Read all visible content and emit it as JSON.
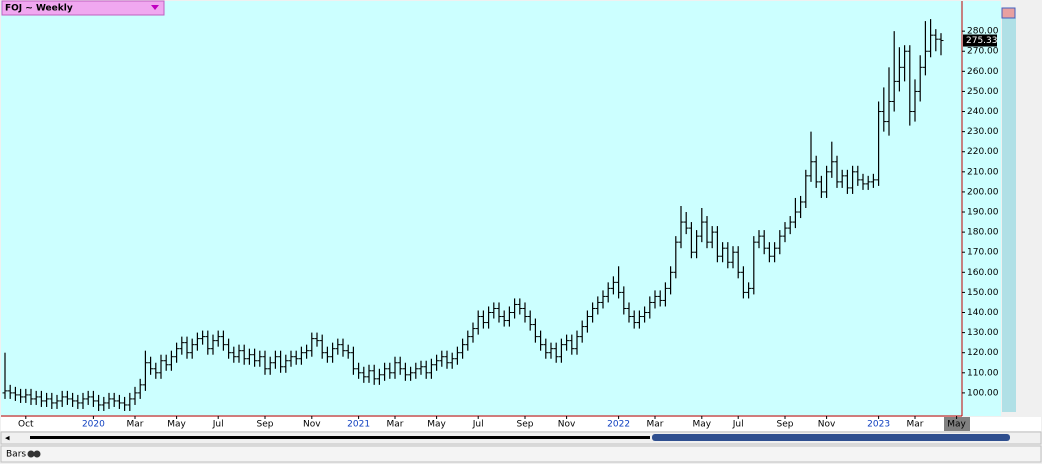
{
  "chart_data": {
    "type": "ohlc",
    "title": "FOJ ~ Weekly",
    "footer_label": "Bars",
    "color": "#000000",
    "categories": [
      null,
      null,
      null,
      null,
      "Oct",
      null,
      null,
      null,
      null,
      null,
      null,
      null,
      null,
      null,
      null,
      null,
      null,
      "2020",
      null,
      null,
      null,
      null,
      null,
      null,
      null,
      "Mar",
      null,
      null,
      null,
      null,
      null,
      null,
      null,
      "May",
      null,
      null,
      null,
      null,
      null,
      null,
      null,
      "Jul",
      null,
      null,
      null,
      null,
      null,
      null,
      null,
      null,
      "Sep",
      null,
      null,
      null,
      null,
      null,
      null,
      null,
      null,
      "Nov",
      null,
      null,
      null,
      null,
      null,
      null,
      null,
      null,
      "2021",
      null,
      null,
      null,
      null,
      null,
      null,
      "Mar",
      null,
      null,
      null,
      null,
      null,
      null,
      null,
      "May",
      null,
      null,
      null,
      null,
      null,
      null,
      null,
      "Jul",
      null,
      null,
      null,
      null,
      null,
      null,
      null,
      null,
      "Sep",
      null,
      null,
      null,
      null,
      null,
      null,
      null,
      "Nov",
      null,
      null,
      null,
      null,
      null,
      null,
      null,
      null,
      null,
      "2022",
      null,
      null,
      null,
      null,
      null,
      null,
      "Mar",
      null,
      null,
      null,
      null,
      null,
      null,
      null,
      null,
      "May",
      null,
      null,
      null,
      null,
      null,
      null,
      "Jul",
      null,
      null,
      null,
      null,
      null,
      null,
      null,
      null,
      "Sep",
      null,
      null,
      null,
      null,
      null,
      null,
      null,
      "Nov",
      null,
      null,
      null,
      null,
      null,
      null,
      null,
      null,
      null,
      "2023",
      null,
      null,
      null,
      null,
      null,
      null,
      "Mar",
      null,
      null,
      null,
      null,
      null,
      null,
      null,
      "May"
    ],
    "open": [
      100,
      101,
      100,
      99,
      98,
      99,
      97,
      98,
      96,
      97,
      95,
      96,
      98,
      97,
      96,
      95,
      97,
      98,
      96,
      94,
      95,
      97,
      96,
      95,
      94,
      97,
      100,
      104,
      115,
      112,
      110,
      116,
      114,
      118,
      122,
      125,
      120,
      124,
      127,
      128,
      122,
      126,
      128,
      124,
      120,
      118,
      121,
      117,
      119,
      116,
      118,
      112,
      115,
      118,
      113,
      116,
      118,
      117,
      120,
      121,
      127,
      126,
      120,
      118,
      122,
      124,
      121,
      120,
      112,
      110,
      108,
      111,
      107,
      109,
      112,
      110,
      115,
      112,
      109,
      110,
      112,
      113,
      110,
      114,
      116,
      118,
      115,
      117,
      120,
      124,
      128,
      132,
      138,
      135,
      140,
      142,
      138,
      136,
      140,
      144,
      142,
      138,
      134,
      128,
      124,
      120,
      122,
      118,
      124,
      126,
      122,
      128,
      133,
      138,
      142,
      145,
      148,
      152,
      155,
      150,
      142,
      138,
      135,
      138,
      140,
      145,
      148,
      146,
      152,
      160,
      175,
      185,
      182,
      170,
      178,
      185,
      175,
      180,
      168,
      172,
      165,
      170,
      160,
      150,
      152,
      175,
      178,
      172,
      168,
      172,
      178,
      182,
      185,
      190,
      195,
      208,
      215,
      205,
      200,
      210,
      215,
      205,
      208,
      202,
      210,
      206,
      204,
      205,
      206,
      240,
      235,
      245,
      255,
      262,
      270,
      240,
      250,
      262,
      270,
      278,
      276,
      null,
      null,
      null
    ],
    "high": [
      120,
      104,
      103,
      102,
      102,
      102,
      101,
      101,
      100,
      100,
      99,
      101,
      101,
      100,
      99,
      100,
      101,
      101,
      99,
      98,
      100,
      100,
      99,
      98,
      100,
      103,
      107,
      121,
      118,
      115,
      119,
      119,
      121,
      125,
      128,
      128,
      127,
      130,
      131,
      131,
      129,
      131,
      131,
      127,
      123,
      124,
      124,
      122,
      122,
      121,
      121,
      118,
      121,
      121,
      119,
      121,
      121,
      123,
      124,
      130,
      130,
      129,
      123,
      125,
      127,
      127,
      124,
      123,
      115,
      113,
      114,
      114,
      112,
      115,
      115,
      118,
      118,
      115,
      113,
      115,
      116,
      116,
      117,
      119,
      121,
      121,
      120,
      123,
      127,
      131,
      135,
      141,
      141,
      143,
      145,
      145,
      141,
      143,
      147,
      147,
      145,
      141,
      137,
      131,
      127,
      125,
      125,
      127,
      129,
      129,
      131,
      136,
      141,
      145,
      148,
      151,
      155,
      158,
      163,
      153,
      145,
      141,
      141,
      143,
      148,
      151,
      151,
      155,
      163,
      178,
      193,
      190,
      185,
      181,
      192,
      188,
      183,
      183,
      175,
      175,
      173,
      173,
      163,
      155,
      178,
      181,
      181,
      175,
      175,
      181,
      185,
      188,
      197,
      198,
      211,
      230,
      218,
      208,
      213,
      225,
      218,
      211,
      211,
      213,
      213,
      209,
      208,
      209,
      245,
      252,
      262,
      280,
      272,
      273,
      273,
      256,
      268,
      285,
      286,
      281,
      279,
      null,
      null,
      null
    ],
    "low": [
      97,
      97,
      96,
      95,
      95,
      94,
      94,
      93,
      93,
      92,
      92,
      93,
      94,
      93,
      92,
      92,
      94,
      93,
      91,
      91,
      92,
      93,
      92,
      91,
      91,
      94,
      97,
      101,
      109,
      107,
      107,
      111,
      111,
      115,
      119,
      117,
      117,
      121,
      124,
      119,
      119,
      123,
      121,
      117,
      115,
      115,
      114,
      114,
      113,
      113,
      109,
      109,
      112,
      110,
      110,
      113,
      114,
      114,
      117,
      118,
      123,
      117,
      115,
      115,
      119,
      118,
      117,
      109,
      107,
      105,
      105,
      104,
      104,
      106,
      107,
      107,
      109,
      106,
      106,
      107,
      109,
      107,
      107,
      111,
      113,
      112,
      112,
      114,
      117,
      121,
      125,
      129,
      132,
      132,
      137,
      135,
      133,
      133,
      137,
      139,
      135,
      131,
      125,
      121,
      117,
      117,
      115,
      115,
      121,
      119,
      119,
      125,
      130,
      135,
      139,
      142,
      145,
      149,
      147,
      139,
      135,
      132,
      132,
      135,
      137,
      142,
      143,
      143,
      149,
      157,
      172,
      179,
      167,
      167,
      175,
      172,
      172,
      165,
      165,
      162,
      162,
      157,
      147,
      147,
      149,
      172,
      169,
      165,
      165,
      169,
      175,
      179,
      182,
      187,
      192,
      205,
      202,
      197,
      197,
      207,
      202,
      202,
      199,
      199,
      203,
      201,
      201,
      202,
      203,
      230,
      228,
      240,
      250,
      255,
      233,
      235,
      245,
      258,
      267,
      270,
      268,
      null,
      null,
      null
    ],
    "close": [
      101,
      100,
      99,
      98,
      99,
      97,
      98,
      96,
      97,
      95,
      96,
      98,
      97,
      96,
      95,
      97,
      98,
      96,
      94,
      95,
      97,
      96,
      95,
      94,
      97,
      100,
      104,
      115,
      112,
      110,
      116,
      114,
      118,
      122,
      125,
      120,
      124,
      127,
      128,
      122,
      126,
      128,
      124,
      120,
      118,
      121,
      117,
      119,
      116,
      118,
      112,
      115,
      118,
      113,
      116,
      118,
      117,
      120,
      121,
      127,
      126,
      120,
      118,
      122,
      124,
      121,
      120,
      112,
      110,
      108,
      111,
      107,
      109,
      112,
      110,
      115,
      112,
      109,
      110,
      112,
      113,
      110,
      114,
      116,
      118,
      115,
      117,
      120,
      124,
      128,
      132,
      138,
      135,
      140,
      142,
      138,
      136,
      140,
      144,
      142,
      138,
      134,
      128,
      124,
      120,
      122,
      118,
      124,
      126,
      122,
      128,
      133,
      138,
      142,
      145,
      148,
      152,
      155,
      150,
      142,
      138,
      135,
      138,
      140,
      145,
      148,
      146,
      152,
      160,
      175,
      185,
      182,
      170,
      178,
      185,
      175,
      180,
      168,
      172,
      165,
      170,
      160,
      150,
      152,
      175,
      178,
      172,
      168,
      172,
      178,
      182,
      185,
      190,
      195,
      208,
      215,
      205,
      200,
      210,
      215,
      205,
      208,
      202,
      210,
      206,
      204,
      205,
      206,
      240,
      235,
      245,
      255,
      262,
      270,
      240,
      250,
      262,
      270,
      278,
      276,
      275.33,
      null,
      null,
      null
    ],
    "ylim": [
      88.5,
      295
    ],
    "yticks": [
      {
        "value": 100,
        "label": "100.00"
      },
      {
        "value": 110,
        "label": "110.00"
      },
      {
        "value": 120,
        "label": "120.00"
      },
      {
        "value": 130,
        "label": "130.00"
      },
      {
        "value": 140,
        "label": "140.00"
      },
      {
        "value": 150,
        "label": "150.00"
      },
      {
        "value": 160,
        "label": "160.00"
      },
      {
        "value": 170,
        "label": "170.00"
      },
      {
        "value": 180,
        "label": "180.00"
      },
      {
        "value": 190,
        "label": "190.00"
      },
      {
        "value": 200,
        "label": "200.00"
      },
      {
        "value": 210,
        "label": "210.00"
      },
      {
        "value": 220,
        "label": "220.00"
      },
      {
        "value": 230,
        "label": "230.00"
      },
      {
        "value": 240,
        "label": "240.00"
      },
      {
        "value": 250,
        "label": "250.00"
      },
      {
        "value": 260,
        "label": "260.00"
      },
      {
        "value": 270,
        "label": "270.00"
      },
      {
        "value": 280,
        "label": "280.00"
      }
    ]
  }
}
